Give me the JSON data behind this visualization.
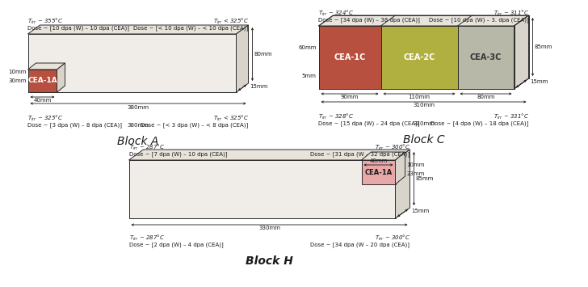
{
  "bg_color": "#ffffff",
  "blockA": {
    "title": "Block A",
    "subblock_color": "#b85040",
    "subblock_label": "CEA-1A",
    "dim_bottom": "380mm",
    "dim_right_h": "80mm",
    "dim_depth": "15mm",
    "dim_sub_w": "40mm",
    "dim_sub_h1": "10mm",
    "dim_sub_h2": "30mm",
    "top_left_temp": "$T_{irr}$ ~ 355°C",
    "top_left_dose": "Dose ~ [10 dpa (W) – 10 dpa (CEA)]",
    "top_right_temp": "$T_{irr}$ < 325°C",
    "top_right_dose": "Dose ~ [< 10 dpa (W) – < 10 dpa (CEA)]",
    "bot_left_temp": "$T_{irr}$ ~ 325°C",
    "bot_left_dose": "Dose ~ [3 dpa (W) – 8 dpa (CEA)]",
    "bot_center": "380mm",
    "bot_right_temp": "$T_{irr}$ < 325°C",
    "bot_right_dose": "Dose ~ [< 3 dpa (W) – < 8 dpa (CEA)]"
  },
  "blockC": {
    "title": "Block C",
    "sub1_label": "CEA-1C",
    "sub1_color": "#b85040",
    "sub2_label": "CEA-2C",
    "sub2_color": "#b0b040",
    "sub3_label": "CEA-3C",
    "sub3_color": "#b8b8a8",
    "dim_sub1": "90mm",
    "dim_sub2": "110mm",
    "dim_sub3": "80mm",
    "dim_total": "310mm",
    "dim_right_h": "85mm",
    "dim_depth": "15mm",
    "dim_left_h": "60mm",
    "dim_left_d": "5mm",
    "top_left_temp": "$T_{irr}$ ~ 324°C",
    "top_left_dose": "Dose ~ [34 dpa (W) – 38 dpa (CEA)]",
    "top_right_temp": "$T_{irr}$ ~ 311°C",
    "top_right_dose": "Dose ~ [10 dpa (W) – 3. dpa (CEA)]",
    "bot_left_temp": "$T_{irr}$ ~ 328°C",
    "bot_left_dose": "Dose ~ [15 dpa (W) – 24 dpa (CEA)]",
    "bot_right_temp": "$T_{irr}$ ~ 331°C",
    "bot_right_dose": "Dose ~ [4 dpa (W) – 18 dpa (CEA)]"
  },
  "blockH": {
    "title": "Block H",
    "subblock_color": "#e8a8a8",
    "subblock_label": "CEA-1A",
    "dim_bottom": "330mm",
    "dim_right_h": "85mm",
    "dim_depth": "15mm",
    "dim_sub_w": "40mm",
    "dim_sub_h1": "10mm",
    "dim_sub_h2": "23mm",
    "top_left_temp": "$T_{irr}$ ~ 287°C",
    "top_left_dose": "Dose ~ [7 dpa (W) – 10 dpa (CEA)]",
    "top_right_temp": "$T_{irr}$ ~ 300°C",
    "top_right_dose": "Dose ~ [31 dpa (W – 32 dpa (CEA)]",
    "bot_left_temp": "$T_{irr}$ ~ 287°C",
    "bot_left_dose": "Dose ~ [2 dpa (W) – 4 dpa (CEA)]",
    "bot_center": "330mm",
    "bot_right_temp": "$T_{irr}$ ~ 300°C",
    "bot_right_dose": "Dose ~ [34 dpa (W – 20 dpa (CEA)]"
  }
}
